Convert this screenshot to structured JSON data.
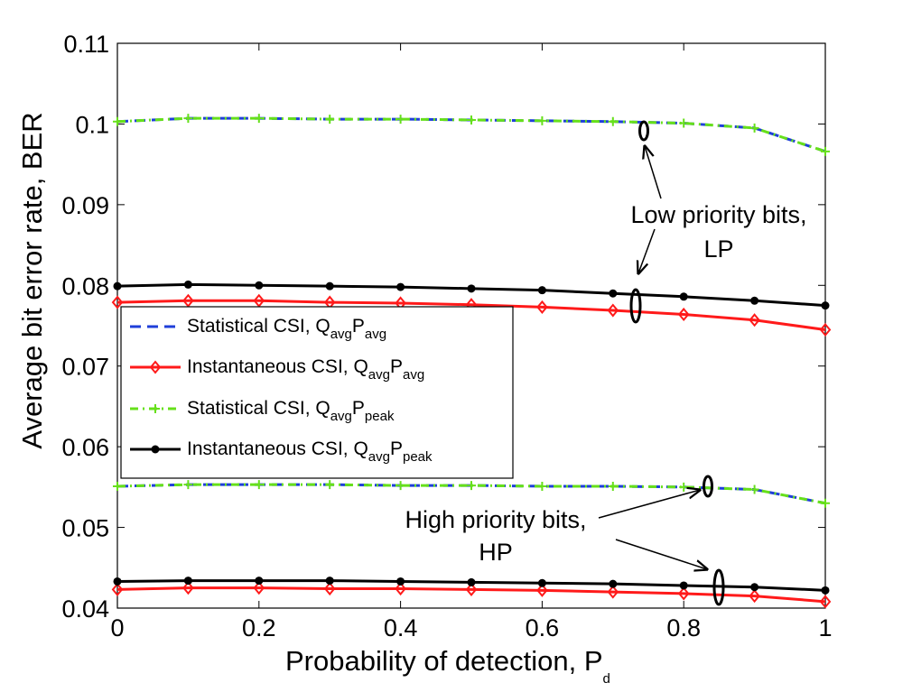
{
  "chart_data": {
    "type": "line",
    "xlabel": "Probability of detection, P",
    "xlabel_sub": "d",
    "ylabel": "Average bit error rate, BER",
    "xlim": [
      0,
      1
    ],
    "ylim": [
      0.04,
      0.11
    ],
    "xticks": [
      "0",
      "0.2",
      "0.4",
      "0.6",
      "0.8",
      "1"
    ],
    "xtick_values": [
      0,
      0.2,
      0.4,
      0.6,
      0.8,
      1
    ],
    "yticks": [
      "0.04",
      "0.05",
      "0.06",
      "0.07",
      "0.08",
      "0.09",
      "0.1",
      "0.11"
    ],
    "ytick_values": [
      0.04,
      0.05,
      0.06,
      0.07,
      0.08,
      0.09,
      0.1,
      0.11
    ],
    "grid": false,
    "legend_position": "middle-left",
    "x": [
      0,
      0.1,
      0.2,
      0.3,
      0.4,
      0.5,
      0.6,
      0.7,
      0.8,
      0.9,
      1.0
    ],
    "series": [
      {
        "legend_index": 0,
        "group": "LP",
        "color": "#1f3fd9",
        "dash": "12,7",
        "marker": "none",
        "values": [
          0.1003,
          0.1007,
          0.1007,
          0.1006,
          0.1006,
          0.1005,
          0.1004,
          0.1003,
          0.1001,
          0.0995,
          0.0966
        ]
      },
      {
        "legend_index": 2,
        "group": "LP",
        "color": "#66e01a",
        "dash": "9,5,2,5",
        "marker": "plus",
        "values": [
          0.1003,
          0.1007,
          0.1007,
          0.1006,
          0.1006,
          0.1005,
          0.1004,
          0.1003,
          0.1001,
          0.0995,
          0.0966
        ]
      },
      {
        "legend_index": 1,
        "group": "LP",
        "color": "#ff1a1a",
        "dash": "",
        "marker": "diamond",
        "values": [
          0.0779,
          0.0781,
          0.0781,
          0.0779,
          0.0778,
          0.0776,
          0.0773,
          0.0769,
          0.0764,
          0.0757,
          0.0745
        ]
      },
      {
        "legend_index": 3,
        "group": "LP",
        "color": "#000000",
        "dash": "",
        "marker": "dot",
        "values": [
          0.0799,
          0.0801,
          0.08,
          0.0799,
          0.0798,
          0.0796,
          0.0794,
          0.079,
          0.0786,
          0.0781,
          0.0775
        ]
      },
      {
        "legend_index": 0,
        "group": "HP",
        "color": "#1f3fd9",
        "dash": "12,7",
        "marker": "none",
        "values": [
          0.0551,
          0.0553,
          0.0553,
          0.0553,
          0.0552,
          0.0552,
          0.0551,
          0.0551,
          0.055,
          0.0547,
          0.053
        ]
      },
      {
        "legend_index": 2,
        "group": "HP",
        "color": "#66e01a",
        "dash": "9,5,2,5",
        "marker": "plus",
        "values": [
          0.0551,
          0.0553,
          0.0553,
          0.0553,
          0.0552,
          0.0552,
          0.0551,
          0.0551,
          0.055,
          0.0547,
          0.053
        ]
      },
      {
        "legend_index": 1,
        "group": "HP",
        "color": "#ff1a1a",
        "dash": "",
        "marker": "diamond",
        "values": [
          0.0423,
          0.0425,
          0.0425,
          0.0424,
          0.0424,
          0.0423,
          0.0422,
          0.042,
          0.0418,
          0.0415,
          0.0408
        ]
      },
      {
        "legend_index": 3,
        "group": "HP",
        "color": "#000000",
        "dash": "",
        "marker": "dot",
        "values": [
          0.0433,
          0.0434,
          0.0434,
          0.0434,
          0.0433,
          0.0432,
          0.0431,
          0.043,
          0.0428,
          0.0426,
          0.0422
        ]
      }
    ],
    "legend": [
      {
        "label": "Statistical CSI, Q",
        "sub1": "avg",
        "mid": "P",
        "sub2": "avg",
        "color": "#1f3fd9",
        "dash": "12,7",
        "marker": "none"
      },
      {
        "label": "Instantaneous CSI, Q",
        "sub1": "avg",
        "mid": "P",
        "sub2": "avg",
        "color": "#ff1a1a",
        "dash": "",
        "marker": "diamond"
      },
      {
        "label": "Statistical CSI, Q",
        "sub1": "avg",
        "mid": "P",
        "sub2": "peak",
        "color": "#66e01a",
        "dash": "9,5,2,5",
        "marker": "plus"
      },
      {
        "label": "Instantaneous CSI, Q",
        "sub1": "avg",
        "mid": "P",
        "sub2": "peak",
        "color": "#000000",
        "dash": "",
        "marker": "dot"
      }
    ],
    "annotations": [
      {
        "id": "lp",
        "line1": "Low priority bits,",
        "line2": "LP"
      },
      {
        "id": "hp",
        "line1": "High priority bits,",
        "line2": "HP"
      }
    ]
  }
}
